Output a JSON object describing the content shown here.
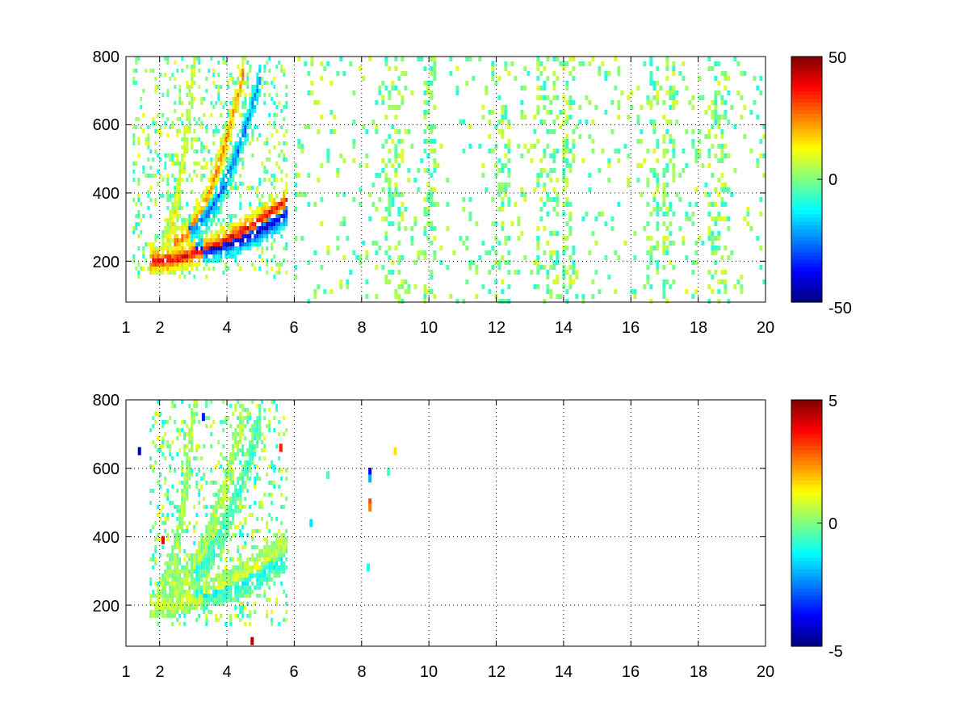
{
  "chart_data": [
    {
      "type": "heatmap",
      "xlim": [
        1,
        20
      ],
      "ylim": [
        80,
        800
      ],
      "x_ticks": [
        "1",
        "2",
        "4",
        "6",
        "8",
        "10",
        "12",
        "14",
        "16",
        "18",
        "20"
      ],
      "y_ticks": [
        "200",
        "400",
        "600",
        "800"
      ],
      "grid": true,
      "colormap": "jet",
      "colorbar": {
        "min": -50,
        "max": 50,
        "tick_labels": [
          "50",
          "0",
          "-50"
        ],
        "location": "right"
      },
      "structure": {
        "ridges": [
          {
            "value": 42,
            "x_range": [
              1.7,
              5.8
            ],
            "y_start": 205,
            "y_end": 390,
            "shape": "rising curve",
            "width": 18
          },
          {
            "value": -45,
            "x_range": [
              3.0,
              5.8
            ],
            "y_start": 235,
            "y_end": 350,
            "shape": "rising curve",
            "width": 18
          },
          {
            "value": 28,
            "x_range": [
              2.4,
              4.5
            ],
            "y_start": 260,
            "y_end": 780,
            "shape": "rising curve",
            "width": 22
          },
          {
            "value": -30,
            "x_range": [
              2.8,
              5.0
            ],
            "y_start": 300,
            "y_end": 760,
            "shape": "rising curve",
            "width": 22
          },
          {
            "value": 12,
            "x_range": [
              2.0,
              3.0
            ],
            "y_start": 230,
            "y_end": 790,
            "shape": "rising curve",
            "width": 30
          }
        ],
        "dense_region_x": [
          1.2,
          5.8
        ],
        "sparse_speckle_x": [
          6.0,
          20.0
        ],
        "sparse_speckle_values": [
          -10,
          10
        ],
        "speckle_columns_x": [
          8.8,
          9.0,
          10.0,
          12.2,
          13.3,
          13.6,
          14.1,
          16.6,
          17.1,
          18.4,
          18.6
        ]
      }
    },
    {
      "type": "heatmap",
      "xlim": [
        1,
        20
      ],
      "ylim": [
        80,
        800
      ],
      "x_ticks": [
        "1",
        "2",
        "4",
        "6",
        "8",
        "10",
        "12",
        "14",
        "16",
        "18",
        "20"
      ],
      "y_ticks": [
        "200",
        "400",
        "600",
        "800"
      ],
      "grid": true,
      "colormap": "jet",
      "colorbar": {
        "min": -5,
        "max": 5,
        "tick_labels": [
          "5",
          "0",
          "-5"
        ],
        "location": "right"
      },
      "structure": {
        "ridges": [
          {
            "value": 0.8,
            "x_range": [
              1.7,
              5.8
            ],
            "y_start": 205,
            "y_end": 390,
            "shape": "rising curve",
            "width": 18
          },
          {
            "value": -1.2,
            "x_range": [
              3.0,
              5.8
            ],
            "y_start": 235,
            "y_end": 350,
            "shape": "rising curve",
            "width": 18
          },
          {
            "value": 0.6,
            "x_range": [
              2.4,
              4.5
            ],
            "y_start": 260,
            "y_end": 780,
            "shape": "rising curve",
            "width": 22
          },
          {
            "value": -0.8,
            "x_range": [
              2.8,
              5.0
            ],
            "y_start": 300,
            "y_end": 760,
            "shape": "rising curve",
            "width": 22
          },
          {
            "value": 0.4,
            "x_range": [
              2.0,
              3.0
            ],
            "y_start": 230,
            "y_end": 790,
            "shape": "rising curve",
            "width": 30
          }
        ],
        "dense_region_x": [
          1.7,
          5.8
        ],
        "isolated_points": [
          {
            "x": 8.25,
            "y": 590,
            "value": -4.0
          },
          {
            "x": 8.25,
            "y": 570,
            "value": -2.0
          },
          {
            "x": 8.25,
            "y": 500,
            "value": 3.0
          },
          {
            "x": 8.25,
            "y": 485,
            "value": 2.5
          },
          {
            "x": 9.0,
            "y": 650,
            "value": 1.5
          },
          {
            "x": 4.75,
            "y": 95,
            "value": 4.5
          },
          {
            "x": 2.1,
            "y": 390,
            "value": 4.0
          },
          {
            "x": 1.4,
            "y": 650,
            "value": -4.5
          },
          {
            "x": 5.6,
            "y": 660,
            "value": 3.5
          },
          {
            "x": 3.3,
            "y": 750,
            "value": -3.5
          },
          {
            "x": 6.5,
            "y": 440,
            "value": -1.5
          },
          {
            "x": 7.0,
            "y": 580,
            "value": -0.5
          },
          {
            "x": 8.2,
            "y": 310,
            "value": -1.0
          },
          {
            "x": 8.8,
            "y": 590,
            "value": -0.5
          }
        ]
      }
    }
  ]
}
